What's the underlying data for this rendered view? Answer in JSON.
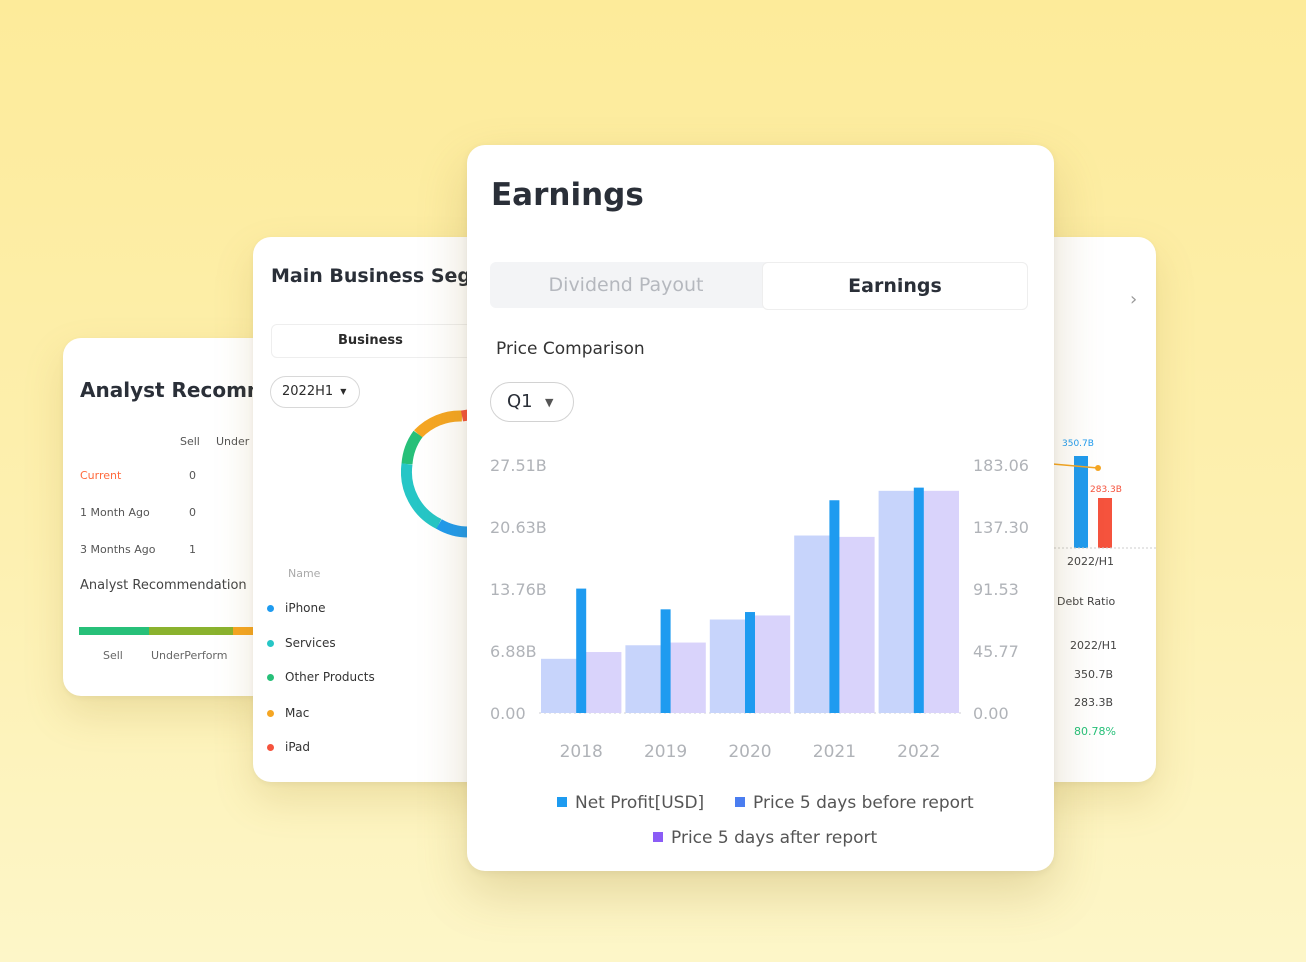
{
  "analyst": {
    "title": "Analyst Recomm",
    "columns": [
      "Sell",
      "Under"
    ],
    "rows": [
      {
        "label": "Current",
        "value": "0"
      },
      {
        "label": "1 Month Ago",
        "value": "0"
      },
      {
        "label": "3 Months Ago",
        "value": "1"
      }
    ],
    "subtitle": "Analyst Recommendation",
    "bar_labels": [
      "Sell",
      "UnderPerform"
    ],
    "colors": {
      "current": "#ff6a3d",
      "sell": "#27c079",
      "underperform": "#8ab22e",
      "hold": "#f5a623"
    }
  },
  "segments": {
    "title": "Main Business Segm",
    "tab": "Business",
    "period": "2022H1",
    "name_header": "Name",
    "items": [
      {
        "name": "iPhone",
        "color": "#1e9bf0"
      },
      {
        "name": "Services",
        "color": "#26c6c6"
      },
      {
        "name": "Other Products",
        "color": "#27c079"
      },
      {
        "name": "Mac",
        "color": "#f5a623"
      },
      {
        "name": "iPad",
        "color": "#f5533d"
      }
    ]
  },
  "debt": {
    "bar_value_1": "350.7B",
    "bar_value_2": "283.3B",
    "period": "2022/H1",
    "ratio_label": "Debt Ratio",
    "table": [
      "2022/H1",
      "350.7B",
      "283.3B",
      "80.78%"
    ],
    "ratio_color": "#27c079"
  },
  "earnings": {
    "title": "Earnings",
    "tabs": [
      "Dividend Payout",
      "Earnings"
    ],
    "active_tab": "Earnings",
    "section": "Price Comparison",
    "quarter": "Q1",
    "legend": [
      "Net Profit[USD]",
      "Price 5 days before report",
      "Price 5 days after report"
    ]
  },
  "chart_data": {
    "type": "bar",
    "categories": [
      "2018",
      "2019",
      "2020",
      "2021",
      "2022"
    ],
    "left_ticks": [
      "27.51B",
      "20.63B",
      "13.76B",
      "6.88B",
      "0.00"
    ],
    "right_ticks": [
      "183.06",
      "137.30",
      "91.53",
      "45.77",
      "0.00"
    ],
    "ylim_left": [
      0,
      27.51
    ],
    "ylim_right": [
      0,
      183.06
    ],
    "series": [
      {
        "name": "Net Profit[USD]",
        "axis": "left",
        "color": "#1e9bf0",
        "values": [
          13.8,
          11.5,
          11.2,
          23.6,
          25.0
        ]
      },
      {
        "name": "Price 5 days before report",
        "axis": "right",
        "color": "#c7d4fb",
        "values": [
          40,
          50,
          69,
          131,
          164
        ]
      },
      {
        "name": "Price 5 days after report",
        "axis": "right",
        "color": "#d9d3fb",
        "values": [
          45,
          52,
          72,
          130,
          164
        ]
      }
    ],
    "grid": false
  }
}
